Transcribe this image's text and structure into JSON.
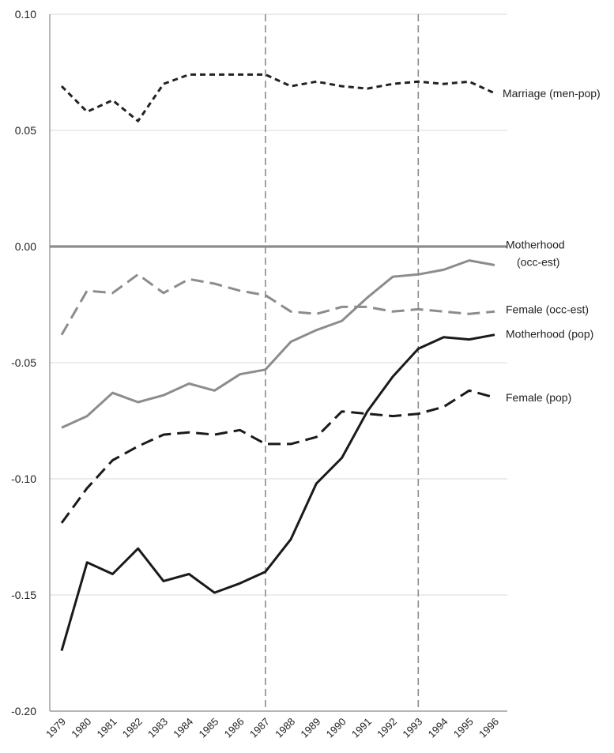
{
  "chart_data": {
    "type": "line",
    "title": "",
    "xlabel": "",
    "ylabel": "",
    "x": [
      "1979",
      "1980",
      "1981",
      "1982",
      "1983",
      "1984",
      "1985",
      "1986",
      "1987",
      "1988",
      "1989",
      "1990",
      "1991",
      "1992",
      "1993",
      "1994",
      "1995",
      "1996"
    ],
    "ylim": [
      -0.2,
      0.1
    ],
    "y_ticks": [
      {
        "value": 0.1,
        "label": "0.10"
      },
      {
        "value": 0.05,
        "label": "0.05"
      },
      {
        "value": 0.0,
        "label": "0.00"
      },
      {
        "value": -0.05,
        "label": "-0.05"
      },
      {
        "value": -0.1,
        "label": "-0.10"
      },
      {
        "value": -0.15,
        "label": "-0.15"
      },
      {
        "value": -0.2,
        "label": "-0.20"
      }
    ],
    "grid": true,
    "reference_lines": {
      "horizontal_zero": 0.0,
      "vertical_years": [
        "1987",
        "1993"
      ]
    },
    "series": [
      {
        "name": "Marriage (men-pop)",
        "color": "#222222",
        "style": "short-dash",
        "values": [
          0.069,
          0.058,
          0.063,
          0.054,
          0.07,
          0.074,
          0.074,
          0.074,
          0.074,
          0.069,
          0.071,
          0.069,
          0.068,
          0.07,
          0.071,
          0.07,
          0.071,
          0.066
        ]
      },
      {
        "name": "Motherhood (occ-est)",
        "color": "#8c8c8c",
        "style": "solid",
        "values": [
          -0.078,
          -0.073,
          -0.063,
          -0.067,
          -0.064,
          -0.059,
          -0.062,
          -0.055,
          -0.053,
          -0.041,
          -0.036,
          -0.032,
          -0.022,
          -0.013,
          -0.012,
          -0.01,
          -0.006,
          -0.008
        ]
      },
      {
        "name": "Female (occ-est)",
        "color": "#8c8c8c",
        "style": "long-dash",
        "values": [
          -0.038,
          -0.019,
          -0.02,
          -0.012,
          -0.02,
          -0.014,
          -0.016,
          -0.019,
          -0.021,
          -0.028,
          -0.029,
          -0.026,
          -0.026,
          -0.028,
          -0.027,
          -0.028,
          -0.029,
          -0.028
        ]
      },
      {
        "name": "Motherhood (pop)",
        "color": "#1a1a1a",
        "style": "solid",
        "values": [
          -0.174,
          -0.136,
          -0.141,
          -0.13,
          -0.144,
          -0.141,
          -0.149,
          -0.145,
          -0.14,
          -0.126,
          -0.102,
          -0.091,
          -0.071,
          -0.056,
          -0.044,
          -0.039,
          -0.04,
          -0.038
        ]
      },
      {
        "name": "Female (pop)",
        "color": "#1a1a1a",
        "style": "long-dash",
        "values": [
          -0.119,
          -0.104,
          -0.092,
          -0.086,
          -0.081,
          -0.08,
          -0.081,
          -0.079,
          -0.085,
          -0.085,
          -0.082,
          -0.071,
          -0.072,
          -0.073,
          -0.072,
          -0.069,
          -0.062,
          -0.065
        ]
      }
    ],
    "series_labels": [
      {
        "series": 0,
        "lines": [
          "Marriage (men-pop)"
        ]
      },
      {
        "series": 1,
        "lines": [
          "Motherhood",
          "(occ-est)"
        ]
      },
      {
        "series": 2,
        "lines": [
          "Female (occ-est)"
        ]
      },
      {
        "series": 3,
        "lines": [
          "Motherhood (pop)"
        ]
      },
      {
        "series": 4,
        "lines": [
          "Female (pop)"
        ]
      }
    ]
  }
}
